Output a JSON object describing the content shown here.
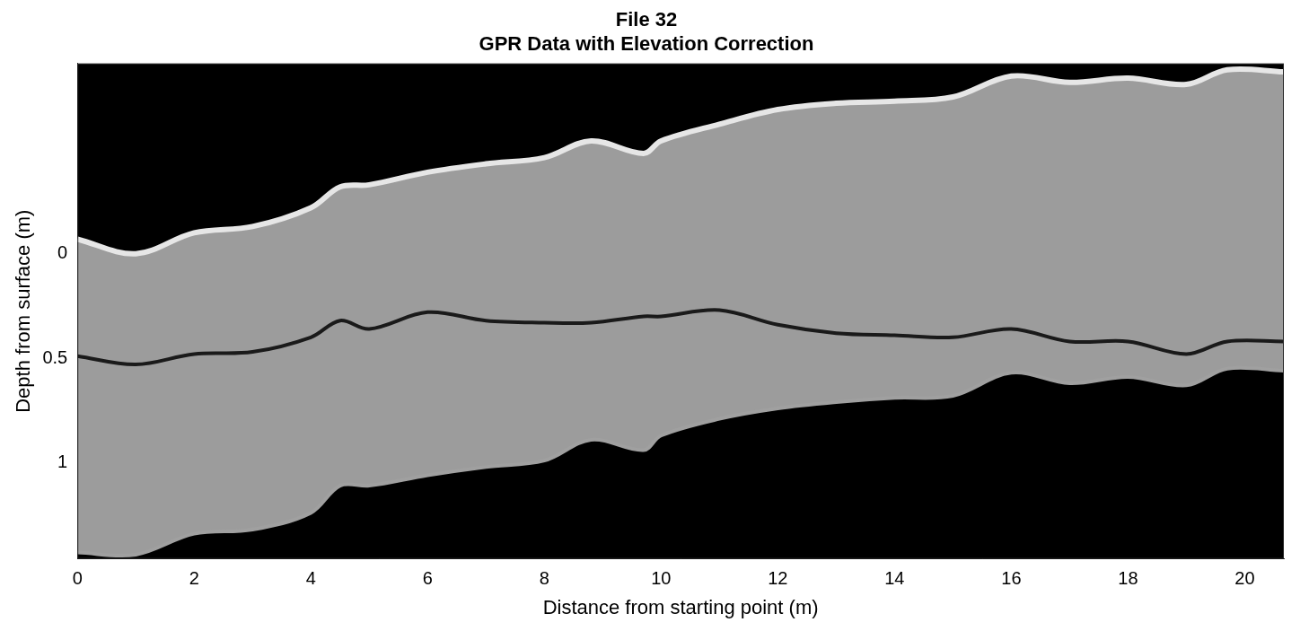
{
  "chart_data": {
    "type": "line",
    "title": [
      "File 32",
      "GPR Data with Elevation Correction"
    ],
    "x_label": "Distance from starting point (m)",
    "y_label": "Depth from surface (m)",
    "x": [
      0,
      1,
      2,
      3,
      4,
      4.5,
      5,
      6,
      7,
      8,
      8.8,
      9.7,
      10,
      11,
      12,
      13,
      14,
      15,
      16,
      17,
      18,
      19,
      19.7,
      20.67
    ],
    "series": [
      {
        "color": "#e6e6e6",
        "values": [
          -0.07,
          0.0,
          -0.1,
          -0.13,
          -0.22,
          -0.32,
          -0.33,
          -0.39,
          -0.43,
          -0.46,
          -0.54,
          -0.48,
          -0.54,
          -0.62,
          -0.69,
          -0.72,
          -0.73,
          -0.75,
          -0.85,
          -0.82,
          -0.84,
          -0.81,
          -0.88,
          -0.87
        ]
      },
      {
        "color": "#1a1a1a",
        "values": [
          0.49,
          0.53,
          0.48,
          0.47,
          0.4,
          0.32,
          0.36,
          0.28,
          0.32,
          0.33,
          0.33,
          0.3,
          0.3,
          0.27,
          0.34,
          0.38,
          0.39,
          0.4,
          0.36,
          0.42,
          0.42,
          0.48,
          0.42,
          0.42
        ]
      },
      {
        "color": "#a0a0a0",
        "values": [
          1.43,
          1.44,
          1.34,
          1.32,
          1.24,
          1.11,
          1.11,
          1.06,
          1.02,
          0.99,
          0.89,
          0.94,
          0.87,
          0.79,
          0.74,
          0.71,
          0.69,
          0.68,
          0.57,
          0.62,
          0.59,
          0.63,
          0.55,
          0.56
        ]
      }
    ],
    "xlim": [
      0,
      20.67
    ],
    "xticks": [
      0,
      2,
      4,
      6,
      8,
      10,
      12,
      14,
      16,
      18,
      20
    ],
    "ylim": [
      1.46,
      -0.91
    ],
    "yticks": [
      0,
      0.5,
      1
    ],
    "grid": false
  }
}
